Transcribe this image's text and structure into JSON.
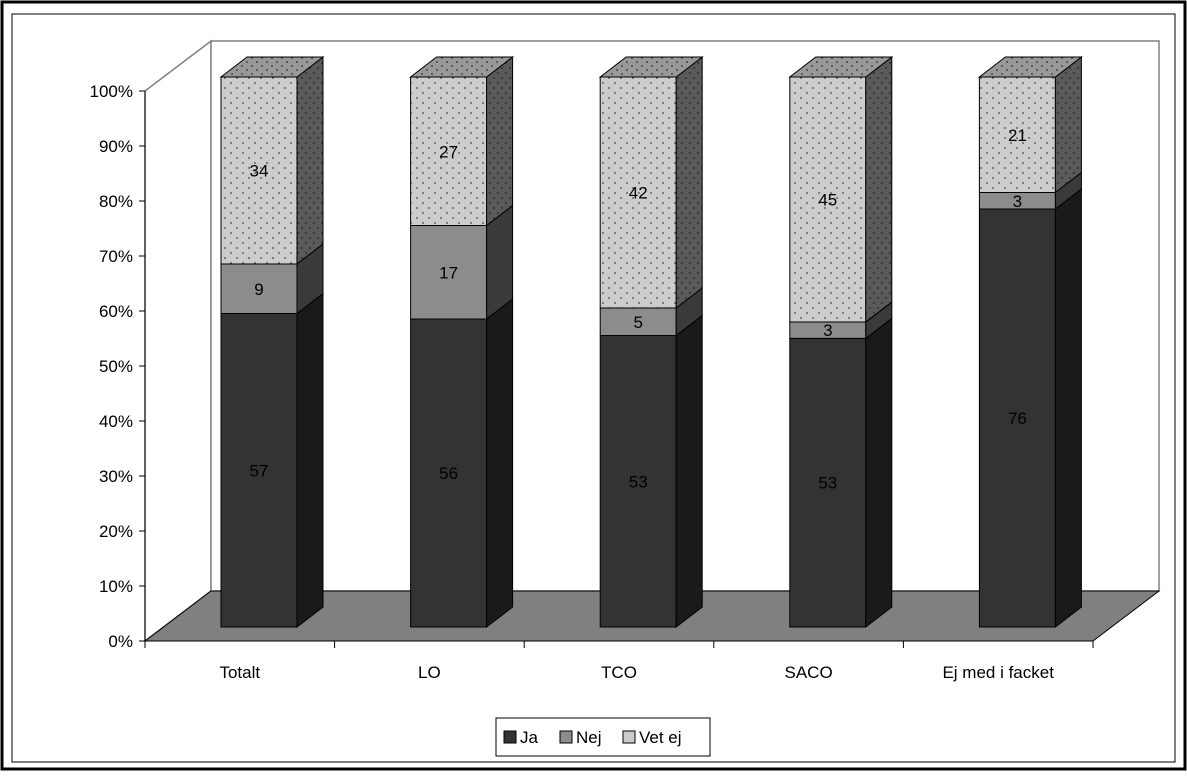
{
  "chart_data": {
    "type": "bar",
    "stacked": "percent",
    "three_d": true,
    "categories": [
      "Totalt",
      "LO",
      "TCO",
      "SACO",
      "Ej med i facket"
    ],
    "series": [
      {
        "name": "Ja",
        "values": [
          57,
          56,
          53,
          53,
          76
        ],
        "color": "#333333"
      },
      {
        "name": "Nej",
        "values": [
          9,
          17,
          5,
          3,
          3
        ],
        "color": "#8c8c8c"
      },
      {
        "name": "Vet ej",
        "values": [
          34,
          27,
          42,
          45,
          21
        ],
        "color": "#cccccc",
        "pattern": "dotted"
      }
    ],
    "ylim": [
      0,
      100
    ],
    "yticks": [
      "0%",
      "10%",
      "20%",
      "30%",
      "40%",
      "50%",
      "60%",
      "70%",
      "80%",
      "90%",
      "100%"
    ],
    "legend": "bottom",
    "floor_color": "#808080"
  }
}
